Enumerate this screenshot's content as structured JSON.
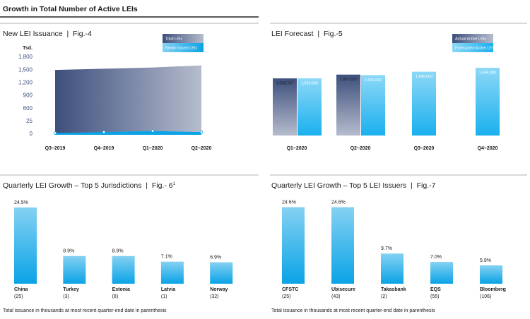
{
  "header": {
    "title": "Growth in Total Number of Active LEIs"
  },
  "chart_data": [
    {
      "type": "area",
      "title": "New LEI Issuance  |  Fig.-4",
      "y_label": "Tsd.",
      "categories": [
        "Q3–2019",
        "Q4–2019",
        "Q1–2020",
        "Q2–2020"
      ],
      "series": [
        {
          "name": "Total LEIs",
          "color": "#3d4f7c",
          "values": [
            1500,
            1530,
            1559,
            1608
          ]
        },
        {
          "name": "Newly Issued LEIs",
          "color": "#0aa3e6",
          "values": [
            2,
            4,
            6,
            4
          ]
        }
      ],
      "ylim": [
        0,
        1800
      ],
      "yticks": [
        0,
        25,
        600,
        900,
        {
          "value": 1200,
          "label": "1,200"
        },
        {
          "value": 1500,
          "label": "1,500"
        },
        {
          "value": 1800,
          "label": "1,800"
        }
      ]
    },
    {
      "type": "grouped-bar",
      "title": "LEI Forecast  |  Fig.-5",
      "categories": [
        "Q1–2020",
        "Q2–2020",
        "Q3–2020",
        "Q4–2020"
      ],
      "series": [
        {
          "name": "Actual Active LEIs",
          "color": "#3d4f7c",
          "values": [
            1558747,
            1607612,
            null,
            null
          ],
          "value_labels": [
            "1,558,747",
            "1,607,612",
            null,
            null
          ]
        },
        {
          "name": "Forecasted Active LEIs",
          "color": "#1ab0ee",
          "values": [
            1559000,
            1601000,
            1645000,
            1696000
          ],
          "value_labels": [
            "1,559,000",
            "1,601,000",
            "1,645,000",
            "1,696,000"
          ]
        }
      ],
      "ylim": [
        820000,
        1700000
      ]
    },
    {
      "type": "bar",
      "title": "Quarterly LEI Growth – Top 5 Jurisdictions  |  Fig.- 6",
      "title_sup": "1",
      "categories": [
        "China",
        "Turkey",
        "Estonia",
        "Latvia",
        "Norway"
      ],
      "sublabels": [
        "(25)",
        "(3)",
        "(8)",
        "(1)",
        "(32)"
      ],
      "values": [
        24.5,
        8.9,
        8.9,
        7.1,
        6.9
      ],
      "value_labels": [
        "24.5%",
        "8.9%",
        "8.9%",
        "7.1%",
        "6.9%"
      ],
      "color": "#0aa3e6",
      "ylim": [
        0,
        25
      ],
      "note": "Total issuance in thousands at most recent quarter-end date in parenthesis"
    },
    {
      "type": "bar",
      "title": "Quarterly LEI Growth – Top 5 LEI Issuers  |  Fig.-7",
      "categories": [
        "CFSTC",
        "Ubisecure",
        "Takasbank",
        "EQS",
        "Bloomberg"
      ],
      "sublabels": [
        "(25)",
        "(43)",
        "(2)",
        "(55)",
        "(106)"
      ],
      "values": [
        24.6,
        24.6,
        9.7,
        7.0,
        5.9
      ],
      "value_labels": [
        "24.6%",
        "24.6%",
        "9.7%",
        "7.0%",
        "5.9%"
      ],
      "color": "#0aa3e6",
      "ylim": [
        0,
        25
      ],
      "note": "Total issuance in thousands at most recent quarter-end date in parenthesis"
    }
  ]
}
